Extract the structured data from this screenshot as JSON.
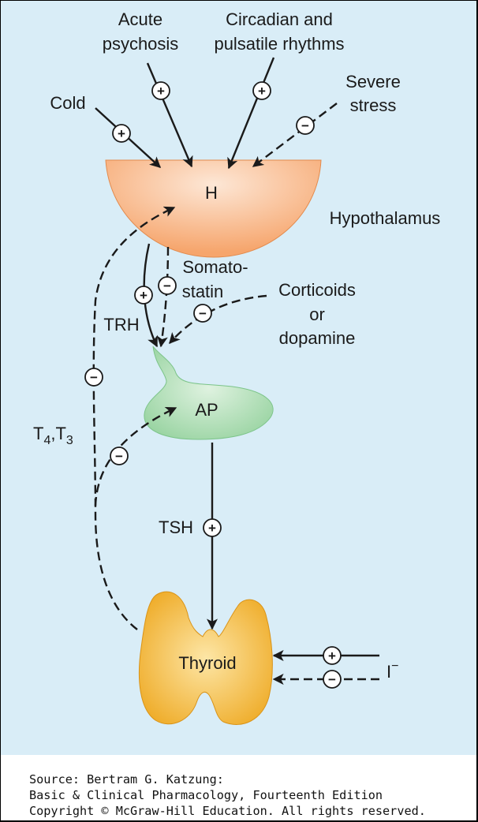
{
  "labels": {
    "acute": [
      "Acute",
      "psychosis"
    ],
    "circadian": [
      "Circadian and",
      "pulsatile rhythms"
    ],
    "stress": [
      "Severe",
      "stress"
    ],
    "cold": "Cold",
    "hypothalamus_abbrev": "H",
    "hypothalamus": "Hypothalamus",
    "somatostatin": [
      "Somato-",
      "statin"
    ],
    "corticoids": [
      "Corticoids",
      "or",
      "dopamine"
    ],
    "trh": "TRH",
    "ap": "AP",
    "t4": "T",
    "t4_sub": "4",
    "t3": ",T",
    "t3_sub": "3",
    "tsh": "TSH",
    "thyroid": "Thyroid",
    "iodide": "I",
    "iodide_sup": "−"
  },
  "signs": {
    "plus": "+",
    "minus": "−"
  },
  "source": [
    "Source: Bertram G. Katzung:",
    "Basic & Clinical Pharmacology, Fourteenth Edition",
    "Copyright © McGraw-Hill Education. All rights reserved."
  ],
  "colors": {
    "background": "#d9edf7",
    "hypothalamus_fill": "#f7b27f",
    "pituitary_fill": "#a9dcb0",
    "thyroid_fill": "#f2b739",
    "arrow": "#1a1a1a"
  }
}
